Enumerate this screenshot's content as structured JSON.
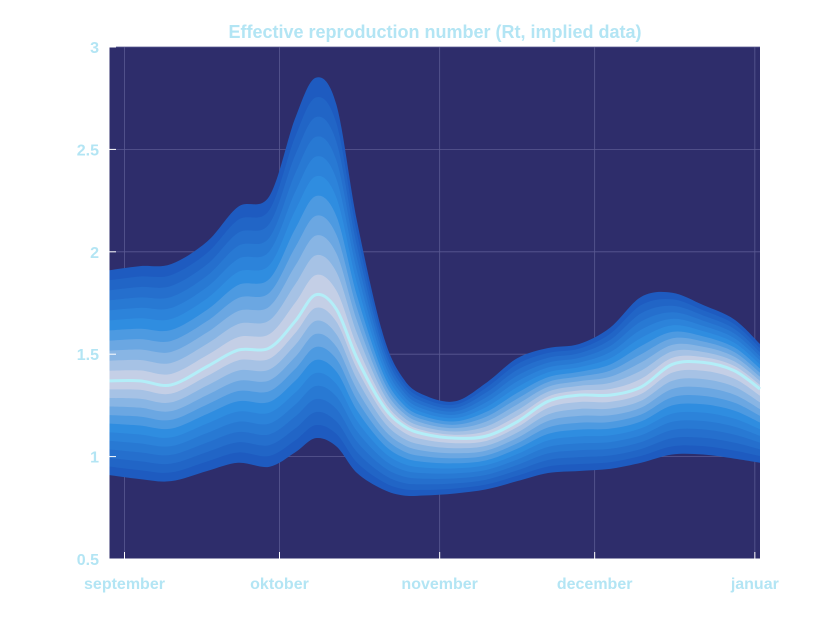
{
  "chart_data": {
    "type": "area",
    "title": "Effective reproduction number (Rt, implied data)",
    "xlabel": "",
    "ylabel": "",
    "x_tick_labels": [
      "september",
      "oktober",
      "november",
      "december",
      "januar"
    ],
    "x_tick_dates": [
      "2020-09-01",
      "2020-10-01",
      "2020-11-01",
      "2020-12-01",
      "2021-01-01"
    ],
    "x_range": [
      "2020-08-29",
      "2021-01-02"
    ],
    "ylim": [
      0.5,
      3
    ],
    "y_ticks": [
      0.5,
      1,
      1.5,
      2,
      2.5,
      3
    ],
    "y_tick_labels": [
      "0.5",
      "1",
      "1.5",
      "2",
      "2.5",
      "3"
    ],
    "grid": true,
    "x": [
      "2020-08-29",
      "2020-09-04",
      "2020-09-10",
      "2020-09-17",
      "2020-09-23",
      "2020-09-29",
      "2020-10-04",
      "2020-10-08",
      "2020-10-12",
      "2020-10-16",
      "2020-10-21",
      "2020-10-25",
      "2020-10-29",
      "2020-11-04",
      "2020-11-10",
      "2020-11-16",
      "2020-11-22",
      "2020-11-28",
      "2020-12-04",
      "2020-12-10",
      "2020-12-16",
      "2020-12-22",
      "2020-12-28",
      "2021-01-02"
    ],
    "median": [
      1.37,
      1.37,
      1.35,
      1.44,
      1.52,
      1.53,
      1.66,
      1.79,
      1.72,
      1.48,
      1.25,
      1.15,
      1.11,
      1.09,
      1.1,
      1.17,
      1.27,
      1.3,
      1.3,
      1.34,
      1.45,
      1.46,
      1.42,
      1.33
    ],
    "lower_90": [
      0.91,
      0.89,
      0.88,
      0.93,
      0.97,
      0.95,
      1.02,
      1.09,
      1.05,
      0.92,
      0.84,
      0.81,
      0.81,
      0.82,
      0.84,
      0.88,
      0.92,
      0.93,
      0.94,
      0.97,
      1.01,
      1.01,
      0.99,
      0.97
    ],
    "upper_90": [
      1.91,
      1.93,
      1.94,
      2.05,
      2.22,
      2.27,
      2.65,
      2.85,
      2.72,
      2.15,
      1.6,
      1.38,
      1.3,
      1.27,
      1.36,
      1.48,
      1.53,
      1.55,
      1.63,
      1.78,
      1.8,
      1.74,
      1.67,
      1.55
    ],
    "bands": 11,
    "colors": {
      "background": "#2e2d6b",
      "text": "#b3e5f4",
      "grid": "#5a5a92",
      "band_outer": "#1e5bc0",
      "band_mid": "#2f8de0",
      "band_inner": "#c4cfe6",
      "median_line": "#b3eef8"
    }
  }
}
